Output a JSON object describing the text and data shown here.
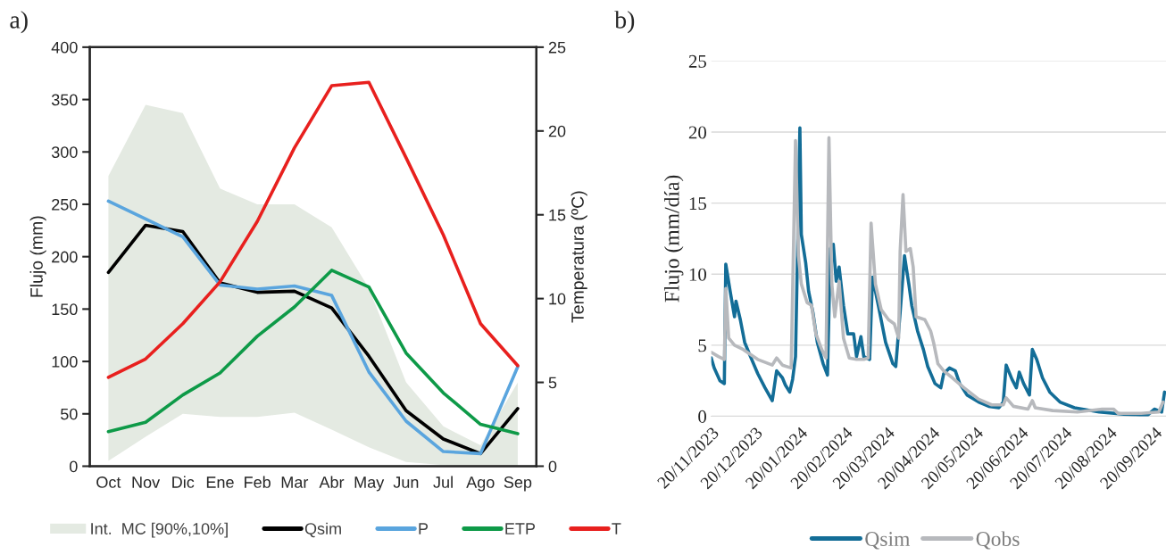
{
  "chart_data": [
    {
      "type": "line",
      "title": "a)",
      "xlabel": null,
      "ylabel": "Flujo (mm)",
      "y2label": "Temperatura (ºC)",
      "categories": [
        "Oct",
        "Nov",
        "Dic",
        "Ene",
        "Feb",
        "Mar",
        "Abr",
        "May",
        "Jun",
        "Jul",
        "Ago",
        "Sep"
      ],
      "series": [
        {
          "name": "Int.  MC [90%,10%]",
          "type": "area",
          "color": "#e4eae2",
          "values": [
            null,
            null,
            null,
            null,
            null,
            null,
            null,
            null,
            null,
            null,
            null,
            null
          ],
          "lower": [
            5,
            28,
            50,
            47,
            47,
            51,
            35,
            18,
            4,
            1,
            0,
            0
          ],
          "upper": [
            277,
            345,
            337,
            265,
            250,
            250,
            228,
            170,
            80,
            38,
            20,
            80
          ]
        },
        {
          "name": "Qsim",
          "type": "line",
          "color": "#000000",
          "values": [
            185,
            230,
            224,
            175,
            166,
            167,
            151,
            105,
            53,
            26,
            12,
            55
          ]
        },
        {
          "name": "P",
          "type": "line",
          "color": "#5aa5de",
          "values": [
            253,
            236,
            219,
            173,
            169,
            172,
            163,
            90,
            43,
            14,
            12,
            95
          ]
        },
        {
          "name": "ETP",
          "type": "line",
          "color": "#0e9a48",
          "values": [
            33,
            42,
            68,
            89,
            124,
            152,
            187,
            171,
            108,
            70,
            40,
            31
          ]
        },
        {
          "name": "T",
          "type": "line",
          "axis": "y2",
          "color": "#e8201e",
          "values": [
            5.3,
            6.4,
            8.5,
            11.0,
            14.6,
            19.0,
            22.7,
            22.9,
            18.4,
            13.8,
            8.5,
            6.0
          ]
        }
      ],
      "ylim": [
        0,
        400
      ],
      "yticks": [
        0,
        50,
        100,
        150,
        200,
        250,
        300,
        350,
        400
      ],
      "y2lim": [
        0,
        25
      ],
      "y2ticks": [
        0,
        5,
        10,
        15,
        20,
        25
      ],
      "grid": false,
      "legend": "bottom",
      "marker": "none",
      "line_style": "solid"
    },
    {
      "type": "line",
      "title": "b)",
      "ylabel": "Flujo (mm/día)",
      "series": [
        {
          "name": "Qsim",
          "color": "#136d97",
          "x": [
            "2023-11-20",
            "2023-11-22",
            "2023-11-26",
            "2023-11-29",
            "2023-11-30",
            "2023-12-03",
            "2023-12-06",
            "2023-12-07",
            "2023-12-10",
            "2023-12-13",
            "2023-12-17",
            "2023-12-22",
            "2023-12-27",
            "2024-01-01",
            "2024-01-04",
            "2024-01-08",
            "2024-01-10",
            "2024-01-13",
            "2024-01-15",
            "2024-01-17",
            "2024-01-20",
            "2024-01-21",
            "2024-01-24",
            "2024-01-26",
            "2024-01-29",
            "2024-02-01",
            "2024-02-05",
            "2024-02-08",
            "2024-02-10",
            "2024-02-12",
            "2024-02-14",
            "2024-02-16",
            "2024-02-19",
            "2024-02-22",
            "2024-02-26",
            "2024-02-28",
            "2024-03-02",
            "2024-03-04",
            "2024-03-08",
            "2024-03-10",
            "2024-03-14",
            "2024-03-19",
            "2024-03-24",
            "2024-03-26",
            "2024-03-29",
            "2024-04-01",
            "2024-04-04",
            "2024-04-06",
            "2024-04-10",
            "2024-04-14",
            "2024-04-17",
            "2024-04-22",
            "2024-04-26",
            "2024-04-28",
            "2024-05-02",
            "2024-05-06",
            "2024-05-09",
            "2024-05-14",
            "2024-05-22",
            "2024-05-29",
            "2024-06-05",
            "2024-06-08",
            "2024-06-10",
            "2024-06-14",
            "2024-06-17",
            "2024-06-19",
            "2024-06-22",
            "2024-06-26",
            "2024-06-28",
            "2024-07-01",
            "2024-07-05",
            "2024-07-10",
            "2024-07-17",
            "2024-07-27",
            "2024-08-13",
            "2024-08-30",
            "2024-09-15",
            "2024-09-20",
            "2024-09-25",
            "2024-09-27"
          ],
          "values": [
            4.1,
            3.4,
            2.5,
            2.3,
            10.7,
            8.8,
            7.0,
            8.1,
            6.8,
            5.2,
            4.2,
            3.0,
            2.0,
            1.1,
            3.2,
            2.7,
            2.2,
            1.7,
            2.6,
            4.2,
            20.3,
            12.8,
            10.8,
            8.8,
            7.3,
            5.2,
            3.7,
            2.9,
            11.8,
            12.1,
            9.5,
            10.5,
            7.8,
            5.8,
            5.8,
            4.2,
            5.6,
            4.2,
            4.0,
            9.8,
            7.8,
            5.2,
            3.7,
            3.5,
            7.3,
            11.3,
            9.3,
            7.8,
            6.0,
            4.7,
            3.5,
            2.3,
            2.0,
            3.0,
            3.4,
            3.2,
            2.3,
            1.5,
            1.0,
            0.7,
            0.6,
            1.0,
            3.6,
            2.6,
            2.0,
            3.1,
            2.3,
            1.5,
            4.7,
            4.0,
            2.7,
            1.7,
            1.0,
            0.6,
            0.3,
            0.15,
            0.05,
            0.5,
            0.3,
            1.7
          ]
        },
        {
          "name": "Qobs",
          "color": "#b7b9bd",
          "x": [
            "2023-11-20",
            "2023-11-25",
            "2023-11-29",
            "2023-11-30",
            "2023-12-02",
            "2023-12-06",
            "2023-12-12",
            "2023-12-22",
            "2024-01-01",
            "2024-01-04",
            "2024-01-08",
            "2024-01-14",
            "2024-01-17",
            "2024-01-19",
            "2024-01-21",
            "2024-01-25",
            "2024-01-28",
            "2024-01-31",
            "2024-02-04",
            "2024-02-07",
            "2024-02-09",
            "2024-02-11",
            "2024-02-13",
            "2024-02-16",
            "2024-02-19",
            "2024-02-23",
            "2024-02-28",
            "2024-03-04",
            "2024-03-07",
            "2024-03-09",
            "2024-03-12",
            "2024-03-16",
            "2024-03-21",
            "2024-03-25",
            "2024-03-28",
            "2024-03-29",
            "2024-03-31",
            "2024-04-02",
            "2024-04-05",
            "2024-04-07",
            "2024-04-09",
            "2024-04-15",
            "2024-04-19",
            "2024-04-21",
            "2024-04-24",
            "2024-04-28",
            "2024-05-04",
            "2024-05-12",
            "2024-05-22",
            "2024-05-31",
            "2024-06-08",
            "2024-06-10",
            "2024-06-15",
            "2024-06-25",
            "2024-06-28",
            "2024-06-30",
            "2024-07-12",
            "2024-07-29",
            "2024-08-15",
            "2024-08-23",
            "2024-08-26",
            "2024-09-11",
            "2024-09-23",
            "2024-09-26"
          ],
          "values": [
            4.5,
            4.2,
            4.0,
            9.0,
            5.5,
            5.0,
            4.7,
            4.0,
            3.6,
            4.1,
            3.6,
            3.4,
            19.4,
            11.3,
            9.3,
            8.0,
            7.8,
            5.8,
            4.7,
            4.1,
            19.6,
            9.3,
            7.0,
            9.5,
            5.5,
            4.1,
            4.0,
            4.0,
            4.1,
            13.6,
            9.3,
            7.5,
            6.8,
            6.5,
            5.5,
            11.6,
            15.6,
            11.6,
            11.8,
            10.5,
            7.0,
            6.8,
            6.0,
            5.2,
            3.7,
            3.2,
            2.7,
            2.0,
            1.2,
            0.8,
            0.8,
            1.3,
            0.7,
            0.5,
            1.1,
            0.6,
            0.4,
            0.3,
            0.5,
            0.5,
            0.2,
            0.2,
            0.3,
            1.0
          ]
        }
      ],
      "xlim": [
        "2023-11-20",
        "2024-09-28"
      ],
      "xticks": [
        {
          "value": "2023-11-20",
          "label": "20/11/2023"
        },
        {
          "value": "2023-12-20",
          "label": "20/12/2023"
        },
        {
          "value": "2024-01-20",
          "label": "20/01/2024"
        },
        {
          "value": "2024-02-20",
          "label": "20/02/2024"
        },
        {
          "value": "2024-03-20",
          "label": "20/03/2024"
        },
        {
          "value": "2024-04-20",
          "label": "20/04/2024"
        },
        {
          "value": "2024-05-20",
          "label": "20/05/2024"
        },
        {
          "value": "2024-06-20",
          "label": "20/06/2024"
        },
        {
          "value": "2024-07-20",
          "label": "20/07/2024"
        },
        {
          "value": "2024-08-20",
          "label": "20/08/2024"
        },
        {
          "value": "2024-09-20",
          "label": "20/09/2024"
        }
      ],
      "ylim": [
        0,
        25
      ],
      "yticks": [
        0,
        5,
        10,
        15,
        20,
        25
      ],
      "grid": "y",
      "legend": "bottom",
      "marker": "none",
      "line_style": "solid"
    }
  ]
}
